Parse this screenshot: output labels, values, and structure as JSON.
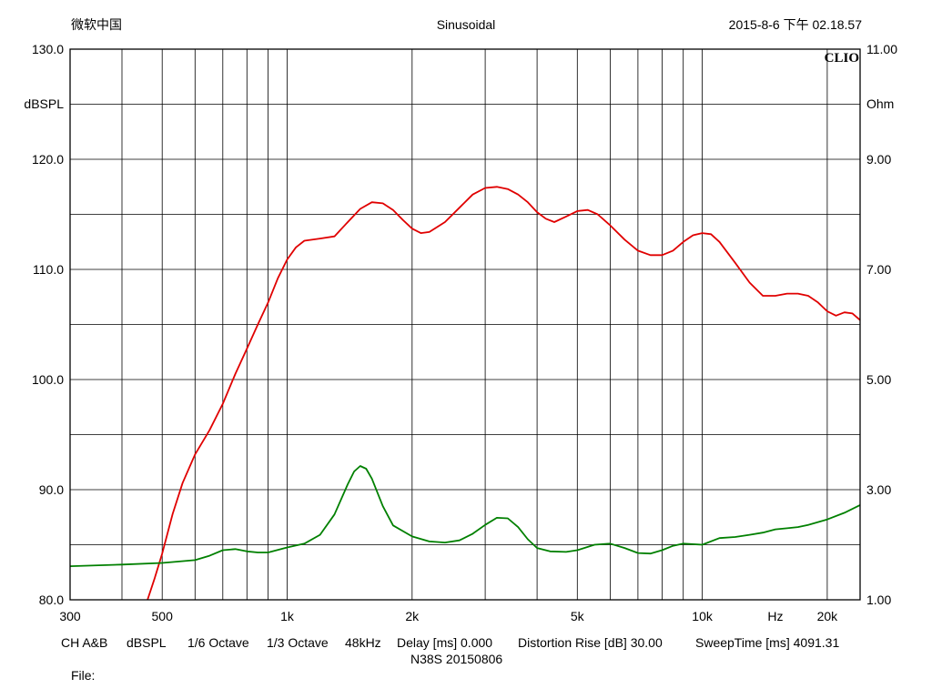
{
  "header": {
    "left": "微软中国",
    "center": "Sinusoidal",
    "right": "2015-8-6 下午 02.18.57"
  },
  "brand": "CLIO",
  "footer": {
    "items": [
      "CH A&B",
      "dBSPL",
      "1/6 Octave",
      "1/3 Octave",
      "48kHz",
      "Delay [ms] 0.000",
      "Distortion Rise [dB] 30.00",
      "SweepTime [ms] 4091.31"
    ],
    "model": "N38S   20150806",
    "file_label": "File:"
  },
  "colors": {
    "spl_curve": "#e00000",
    "impedance_curve": "#008000",
    "grid": "#000000",
    "background": "#ffffff"
  },
  "chart_data": {
    "type": "line",
    "x_scale": "log",
    "xlim": [
      300,
      24000
    ],
    "x_ticks": [
      {
        "value": 300,
        "label": "300"
      },
      {
        "value": 500,
        "label": "500"
      },
      {
        "value": 1000,
        "label": "1k"
      },
      {
        "value": 2000,
        "label": "2k"
      },
      {
        "value": 5000,
        "label": "5k"
      },
      {
        "value": 10000,
        "label": "10k"
      },
      {
        "value": 15000,
        "label": "Hz"
      },
      {
        "value": 20000,
        "label": "20k"
      }
    ],
    "x_gridlines": [
      300,
      400,
      500,
      600,
      700,
      800,
      900,
      1000,
      2000,
      3000,
      4000,
      5000,
      6000,
      7000,
      8000,
      9000,
      10000,
      20000
    ],
    "y_left": {
      "label": "dBSPL",
      "lim": [
        80,
        130
      ],
      "ticks": [
        {
          "value": 130,
          "label": "130.0"
        },
        {
          "value": 120,
          "label": "120.0"
        },
        {
          "value": 110,
          "label": "110.0"
        },
        {
          "value": 100,
          "label": "100.0"
        },
        {
          "value": 90,
          "label": "90.0"
        },
        {
          "value": 80,
          "label": "80.0"
        }
      ]
    },
    "y_right": {
      "label": "Ohm",
      "lim": [
        1,
        11
      ],
      "ticks": [
        {
          "value": 11,
          "label": "11.00"
        },
        {
          "value": 9,
          "label": "9.00"
        },
        {
          "value": 7,
          "label": "7.00"
        },
        {
          "value": 5,
          "label": "5.00"
        },
        {
          "value": 3,
          "label": "3.00"
        },
        {
          "value": 1,
          "label": "1.00"
        }
      ]
    },
    "y_gridlines_left": [
      130,
      125,
      120,
      115,
      110,
      105,
      100,
      95,
      90,
      85,
      80
    ],
    "series": [
      {
        "key": "spl",
        "axis": "left",
        "color": "#e00000",
        "x": [
          461,
          480,
          500,
          530,
          560,
          600,
          650,
          700,
          750,
          800,
          850,
          900,
          950,
          1000,
          1050,
          1100,
          1200,
          1300,
          1400,
          1500,
          1600,
          1700,
          1800,
          1900,
          2000,
          2100,
          2200,
          2400,
          2600,
          2800,
          3000,
          3200,
          3400,
          3600,
          3800,
          4000,
          4200,
          4400,
          4700,
          5000,
          5300,
          5600,
          6000,
          6500,
          7000,
          7500,
          8000,
          8500,
          9000,
          9500,
          10000,
          10500,
          11000,
          12000,
          13000,
          14000,
          15000,
          16000,
          17000,
          18000,
          19000,
          20000,
          21000,
          22000,
          23000,
          24000
        ],
        "y": [
          80.0,
          82.0,
          84.2,
          87.8,
          90.6,
          93.2,
          95.4,
          97.8,
          100.5,
          102.8,
          105.0,
          107.0,
          109.2,
          110.9,
          112.0,
          112.6,
          112.8,
          113.0,
          114.3,
          115.5,
          116.1,
          116.0,
          115.4,
          114.5,
          113.7,
          113.3,
          113.4,
          114.3,
          115.6,
          116.8,
          117.4,
          117.5,
          117.3,
          116.8,
          116.1,
          115.2,
          114.6,
          114.3,
          114.8,
          115.3,
          115.4,
          115.0,
          114.0,
          112.7,
          111.7,
          111.3,
          111.3,
          111.7,
          112.5,
          113.1,
          113.3,
          113.2,
          112.5,
          110.6,
          108.8,
          107.6,
          107.6,
          107.8,
          107.8,
          107.6,
          107.0,
          106.2,
          105.8,
          106.1,
          106.0,
          105.4
        ]
      },
      {
        "key": "impedance",
        "axis": "right",
        "color": "#008000",
        "x": [
          300,
          400,
          500,
          600,
          650,
          700,
          750,
          800,
          850,
          900,
          1000,
          1100,
          1200,
          1300,
          1400,
          1450,
          1500,
          1550,
          1600,
          1700,
          1800,
          2000,
          2200,
          2400,
          2600,
          2800,
          3000,
          3200,
          3400,
          3600,
          3800,
          4000,
          4300,
          4700,
          5000,
          5500,
          6000,
          6500,
          7000,
          7500,
          8000,
          8500,
          9000,
          9500,
          10000,
          11000,
          12000,
          13000,
          14000,
          15000,
          16000,
          17000,
          18000,
          20000,
          22000,
          24000
        ],
        "y": [
          1.61,
          1.64,
          1.67,
          1.72,
          1.8,
          1.9,
          1.92,
          1.88,
          1.86,
          1.86,
          1.95,
          2.02,
          2.18,
          2.55,
          3.1,
          3.33,
          3.43,
          3.38,
          3.2,
          2.7,
          2.35,
          2.15,
          2.06,
          2.04,
          2.08,
          2.2,
          2.36,
          2.49,
          2.48,
          2.32,
          2.1,
          1.94,
          1.88,
          1.87,
          1.9,
          2.0,
          2.02,
          1.94,
          1.85,
          1.84,
          1.9,
          1.98,
          2.02,
          2.01,
          2.0,
          2.12,
          2.14,
          2.18,
          2.22,
          2.28,
          2.3,
          2.32,
          2.36,
          2.46,
          2.58,
          2.72
        ]
      }
    ]
  }
}
